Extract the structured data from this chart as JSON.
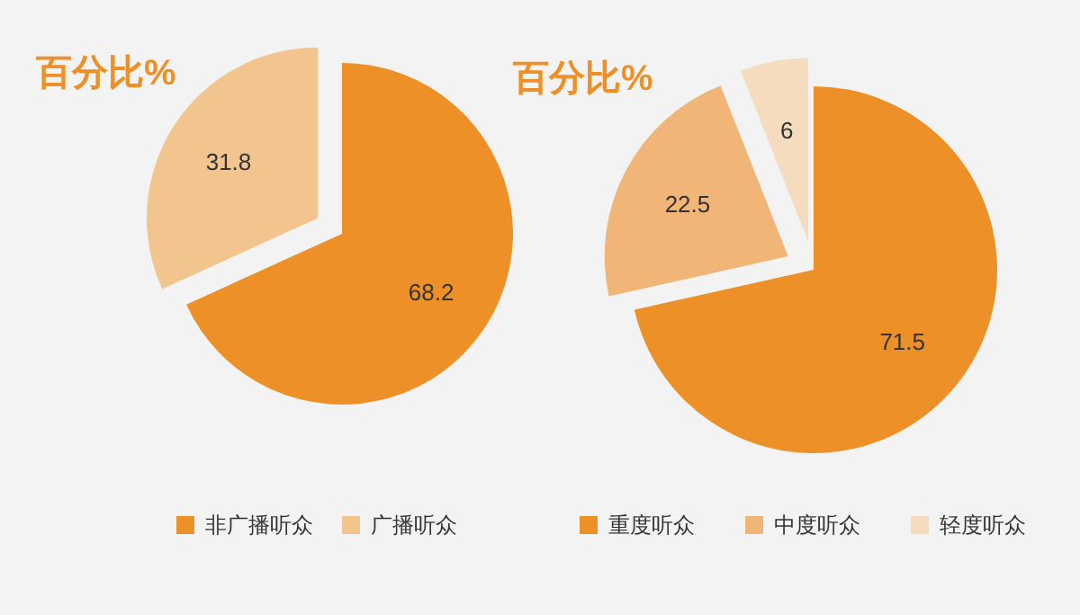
{
  "chart_data": [
    {
      "type": "pie",
      "title": "百分比%",
      "categories": [
        "非广播听众",
        "广播听众"
      ],
      "values": [
        68.2,
        31.8
      ],
      "colors": [
        "#ee9028",
        "#f2c48e"
      ],
      "data_labels": true,
      "legend": "bottom"
    },
    {
      "type": "pie",
      "title": "百分比%",
      "categories": [
        "重度听众",
        "中度听众",
        "轻度听众"
      ],
      "values": [
        71.5,
        22.5,
        6
      ],
      "colors": [
        "#ee9028",
        "#f0b577",
        "#f5dcbf"
      ],
      "data_labels": true,
      "legend": "bottom"
    }
  ]
}
